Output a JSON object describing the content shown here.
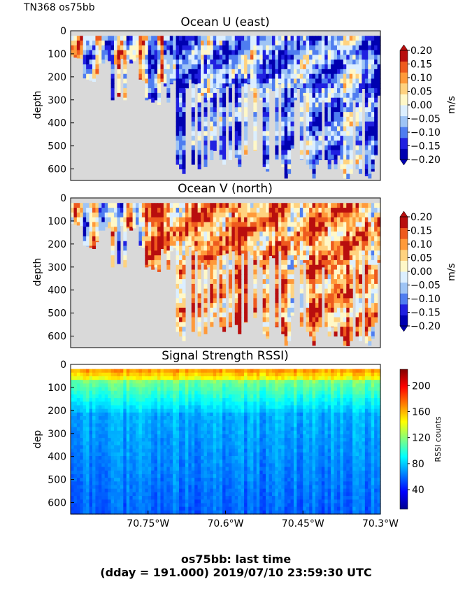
{
  "cruise_label": "TN368 os75bb",
  "footer": {
    "line1": "os75bb: last time",
    "line2": "(dday = 191.000) 2019/07/10 23:59:30 UTC"
  },
  "chart_data": [
    {
      "type": "heatmap",
      "title": "Ocean U (east)",
      "ylabel": "depth",
      "ylim": [
        650,
        0
      ],
      "y_ticks": [
        "0",
        "100",
        "200",
        "300",
        "400",
        "500",
        "600"
      ],
      "xlim": [
        -70.9,
        -70.3
      ],
      "colorbar": {
        "label": "m/s",
        "range": [
          -0.2,
          0.2
        ],
        "ticks": [
          "0.20",
          "0.15",
          "0.10",
          "0.05",
          "0.00",
          "−0.05",
          "−0.10",
          "−0.15",
          "−0.20"
        ],
        "colors": [
          "#0000b0",
          "#2020e0",
          "#4f7df0",
          "#9ec4f5",
          "#dcefff",
          "#fff8c8",
          "#ffd27f",
          "#ff9a3a",
          "#ee5a1e",
          "#b80e0e"
        ]
      },
      "bottom_depth_m": [
        110,
        115,
        118,
        120,
        205,
        210,
        215,
        220,
        190,
        140,
        140,
        125,
        130,
        300,
        145,
        285,
        120,
        300,
        130,
        140,
        130,
        115,
        210,
        215,
        300,
        295,
        310,
        300,
        320,
        220,
        240,
        310,
        230,
        215,
        580,
        600,
        620,
        250,
        210,
        580,
        230,
        600,
        280,
        590,
        300,
        560,
        520,
        250,
        560,
        580,
        240,
        560,
        230,
        550,
        590,
        240,
        540,
        230,
        260,
        520,
        250,
        300,
        590,
        610,
        250,
        260,
        560,
        230,
        590,
        640,
        620,
        510,
        300,
        250,
        560,
        280,
        580,
        600,
        640,
        580,
        560,
        300,
        560,
        600,
        560,
        600,
        540,
        600,
        640,
        650,
        620,
        300,
        600,
        620,
        250,
        630,
        640,
        610,
        540,
        280
      ]
    },
    {
      "type": "heatmap",
      "title": "Ocean V (north)",
      "ylabel": "depth",
      "ylim": [
        650,
        0
      ],
      "y_ticks": [
        "0",
        "100",
        "200",
        "300",
        "400",
        "500",
        "600"
      ],
      "xlim": [
        -70.9,
        -70.3
      ],
      "colorbar": {
        "label": "m/s",
        "range": [
          -0.2,
          0.2
        ],
        "ticks": [
          "0.20",
          "0.15",
          "0.10",
          "0.05",
          "0.00",
          "−0.05",
          "−0.10",
          "−0.15",
          "−0.20"
        ],
        "colors": [
          "#0000b0",
          "#2020e0",
          "#4f7df0",
          "#9ec4f5",
          "#dcefff",
          "#fff8c8",
          "#ffd27f",
          "#ff9a3a",
          "#ee5a1e",
          "#b80e0e"
        ]
      }
    },
    {
      "type": "heatmap",
      "title": "Signal Strength RSSI)",
      "ylabel": "dep",
      "ylim": [
        650,
        0
      ],
      "y_ticks": [
        "0",
        "100",
        "200",
        "300",
        "400",
        "500",
        "600"
      ],
      "xlim": [
        -70.9,
        -70.3
      ],
      "x_ticks": [
        {
          "value": -70.75,
          "label": "70.75°W"
        },
        {
          "value": -70.6,
          "label": "70.6°W"
        },
        {
          "value": -70.45,
          "label": "70.45°W"
        },
        {
          "value": -70.3,
          "label": "70.3°W"
        }
      ],
      "colorbar": {
        "label": "RSSI counts",
        "range": [
          10,
          225
        ],
        "ticks": [
          "200",
          "160",
          "120",
          "80",
          "40"
        ],
        "tick_values": [
          200,
          160,
          120,
          80,
          40
        ]
      }
    }
  ]
}
